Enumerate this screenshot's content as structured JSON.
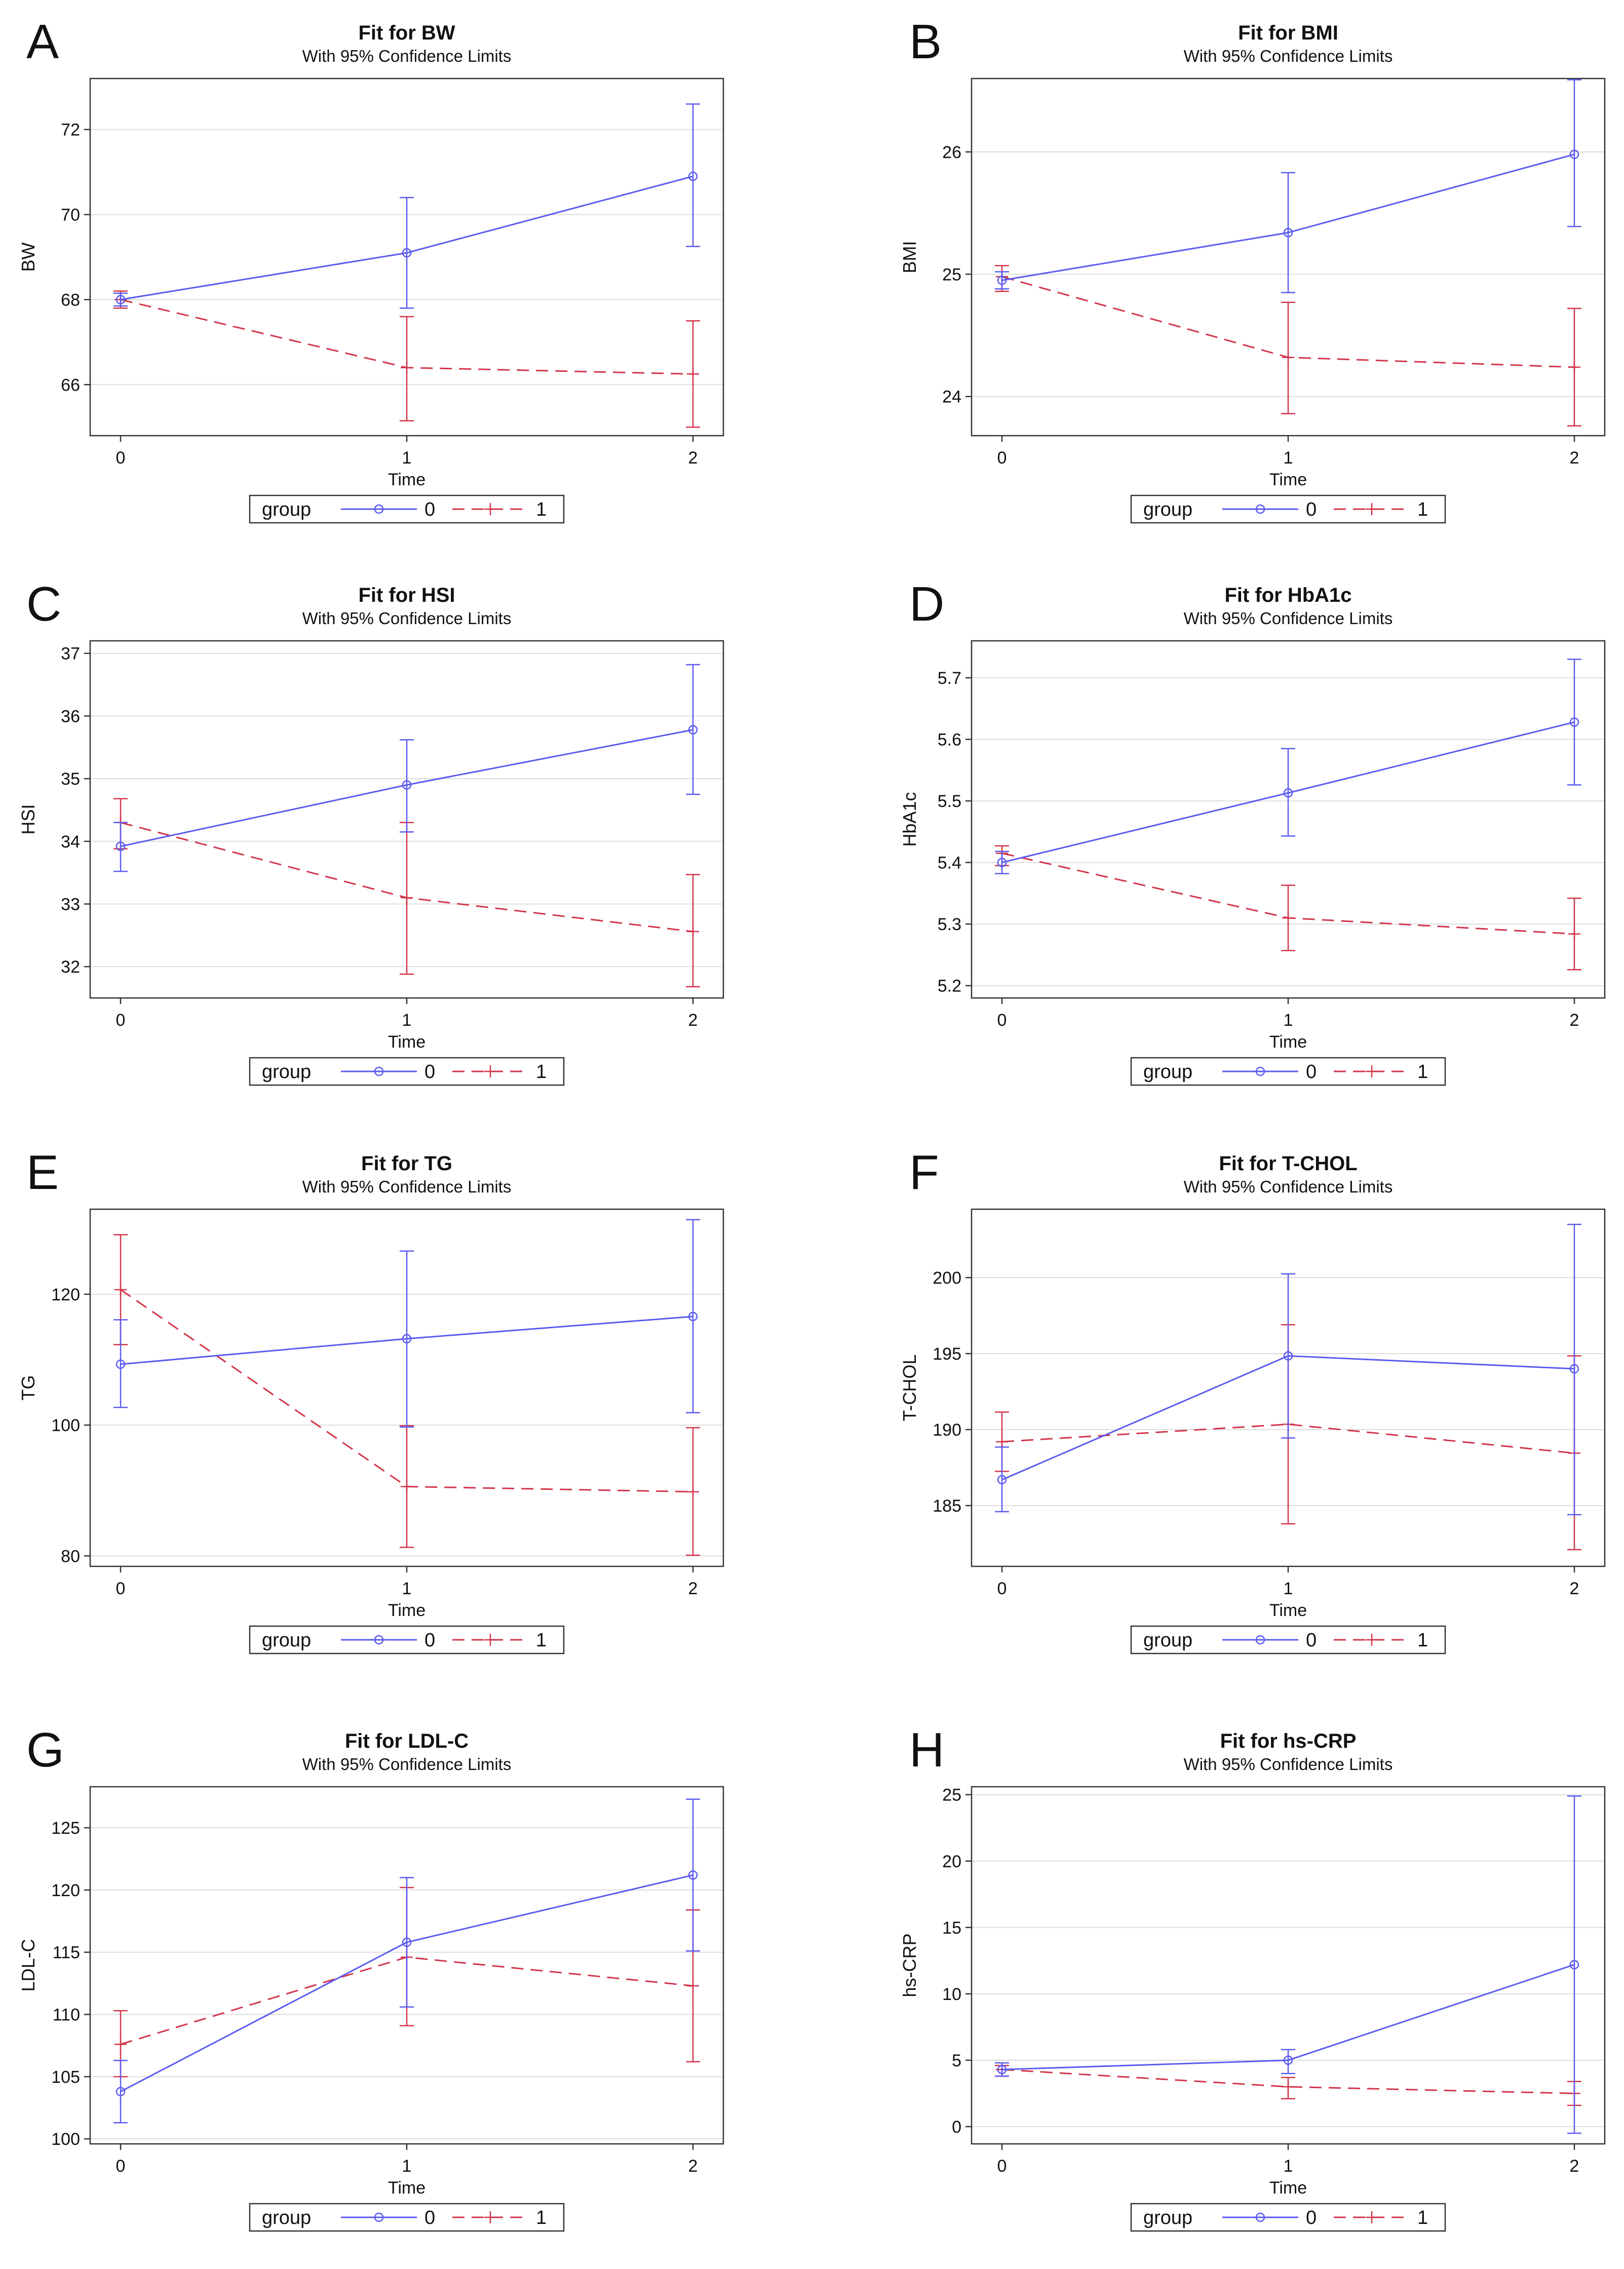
{
  "figure": {
    "subtitle": "With 95% Confidence Limits",
    "x_axis_label": "Time",
    "legend_title": "group",
    "group_labels": [
      "0",
      "1"
    ],
    "colors": {
      "group0": "#5b5bf0",
      "group1": "#d2354a",
      "axis": "#333333",
      "grid": "#dddddd"
    }
  },
  "chart_data": [
    {
      "panel": "A",
      "type": "line",
      "title": "Fit for BW",
      "ylabel": "BW",
      "x": [
        0,
        1,
        2
      ],
      "xticks": [
        "0",
        "1",
        "2"
      ],
      "ylim": [
        64.8,
        73.2
      ],
      "yticks": [
        "66",
        "68",
        "70",
        "72"
      ],
      "series": [
        {
          "name": "0",
          "values": [
            68.0,
            69.1,
            70.9
          ],
          "lower": [
            67.85,
            67.8,
            69.25
          ],
          "upper": [
            68.15,
            70.4,
            72.6
          ]
        },
        {
          "name": "1",
          "values": [
            68.0,
            66.4,
            66.25
          ],
          "lower": [
            67.8,
            65.15,
            65.0
          ],
          "upper": [
            68.2,
            67.6,
            67.5
          ]
        }
      ]
    },
    {
      "panel": "B",
      "type": "line",
      "title": "Fit for BMI",
      "ylabel": "BMI",
      "x": [
        0,
        1,
        2
      ],
      "xticks": [
        "0",
        "1",
        "2"
      ],
      "ylim": [
        23.68,
        26.6
      ],
      "yticks": [
        "24",
        "25",
        "26"
      ],
      "series": [
        {
          "name": "0",
          "values": [
            24.95,
            25.34,
            25.98
          ],
          "lower": [
            24.88,
            24.85,
            25.39
          ],
          "upper": [
            25.02,
            25.83,
            26.59
          ]
        },
        {
          "name": "1",
          "values": [
            24.98,
            24.32,
            24.24
          ],
          "lower": [
            24.86,
            23.86,
            23.76
          ],
          "upper": [
            25.07,
            24.77,
            24.72
          ]
        }
      ]
    },
    {
      "panel": "C",
      "type": "line",
      "title": "Fit for HSI",
      "ylabel": "HSI",
      "x": [
        0,
        1,
        2
      ],
      "xticks": [
        "0",
        "1",
        "2"
      ],
      "ylim": [
        31.5,
        37.2
      ],
      "yticks": [
        "32",
        "33",
        "34",
        "35",
        "36",
        "37"
      ],
      "series": [
        {
          "name": "0",
          "values": [
            33.92,
            34.9,
            35.78
          ],
          "lower": [
            33.52,
            34.15,
            34.75
          ],
          "upper": [
            34.3,
            35.62,
            36.82
          ]
        },
        {
          "name": "1",
          "values": [
            34.3,
            33.1,
            32.56
          ],
          "lower": [
            33.88,
            31.88,
            31.68
          ],
          "upper": [
            34.68,
            34.3,
            33.47
          ]
        }
      ]
    },
    {
      "panel": "D",
      "type": "line",
      "title": "Fit for HbA1c",
      "ylabel": "HbA1c",
      "x": [
        0,
        1,
        2
      ],
      "xticks": [
        "0",
        "1",
        "2"
      ],
      "ylim": [
        5.18,
        5.76
      ],
      "yticks": [
        "5.2",
        "5.3",
        "5.4",
        "5.5",
        "5.6",
        "5.7"
      ],
      "series": [
        {
          "name": "0",
          "values": [
            5.4,
            5.513,
            5.628
          ],
          "lower": [
            5.382,
            5.443,
            5.526
          ],
          "upper": [
            5.418,
            5.585,
            5.73
          ]
        },
        {
          "name": "1",
          "values": [
            5.415,
            5.31,
            5.284
          ],
          "lower": [
            5.395,
            5.257,
            5.226
          ],
          "upper": [
            5.427,
            5.363,
            5.342
          ]
        }
      ]
    },
    {
      "panel": "E",
      "type": "line",
      "title": "Fit for TG",
      "ylabel": "TG",
      "x": [
        0,
        1,
        2
      ],
      "xticks": [
        "0",
        "1",
        "2"
      ],
      "ylim": [
        78.4,
        133.0
      ],
      "yticks": [
        "80",
        "100",
        "120"
      ],
      "series": [
        {
          "name": "0",
          "values": [
            109.3,
            113.2,
            116.6
          ],
          "lower": [
            102.7,
            99.7,
            101.9
          ],
          "upper": [
            116.1,
            126.6,
            131.4
          ]
        },
        {
          "name": "1",
          "values": [
            120.7,
            90.6,
            89.8
          ],
          "lower": [
            112.3,
            81.3,
            80.1
          ],
          "upper": [
            129.1,
            99.9,
            99.6
          ]
        }
      ]
    },
    {
      "panel": "F",
      "type": "line",
      "title": "Fit for T-CHOL",
      "ylabel": "T-CHOL",
      "x": [
        0,
        1,
        2
      ],
      "xticks": [
        "0",
        "1",
        "2"
      ],
      "ylim": [
        181.0,
        204.5
      ],
      "yticks": [
        "185",
        "190",
        "195",
        "200"
      ],
      "series": [
        {
          "name": "0",
          "values": [
            186.7,
            194.85,
            194.0
          ],
          "lower": [
            184.6,
            189.45,
            184.4
          ],
          "upper": [
            188.85,
            200.25,
            203.5
          ]
        },
        {
          "name": "1",
          "values": [
            189.2,
            190.35,
            188.45
          ],
          "lower": [
            187.25,
            183.8,
            182.1
          ],
          "upper": [
            191.15,
            196.9,
            194.85
          ]
        }
      ]
    },
    {
      "panel": "G",
      "type": "line",
      "title": "Fit for LDL-C",
      "ylabel": "LDL-C",
      "x": [
        0,
        1,
        2
      ],
      "xticks": [
        "0",
        "1",
        "2"
      ],
      "ylim": [
        99.6,
        128.3
      ],
      "yticks": [
        "100",
        "105",
        "110",
        "115",
        "120",
        "125"
      ],
      "series": [
        {
          "name": "0",
          "values": [
            103.8,
            115.8,
            121.2
          ],
          "lower": [
            101.3,
            110.6,
            115.1
          ],
          "upper": [
            106.3,
            121.0,
            127.3
          ]
        },
        {
          "name": "1",
          "values": [
            107.6,
            114.6,
            112.3
          ],
          "lower": [
            105.0,
            109.1,
            106.2
          ],
          "upper": [
            110.3,
            120.2,
            118.4
          ]
        }
      ]
    },
    {
      "panel": "H",
      "type": "line",
      "title": "Fit for hs-CRP",
      "ylabel": "hs-CRP",
      "x": [
        0,
        1,
        2
      ],
      "xticks": [
        "0",
        "1",
        "2"
      ],
      "ylim": [
        -1.3,
        25.6
      ],
      "yticks": [
        "0",
        "5",
        "10",
        "15",
        "20",
        "25"
      ],
      "series": [
        {
          "name": "0",
          "values": [
            4.3,
            5.0,
            12.2
          ],
          "lower": [
            3.8,
            4.0,
            -0.5
          ],
          "upper": [
            4.8,
            5.8,
            24.9
          ]
        },
        {
          "name": "1",
          "values": [
            4.3,
            3.0,
            2.5
          ],
          "lower": [
            3.8,
            2.1,
            1.6
          ],
          "upper": [
            4.6,
            3.7,
            3.4
          ]
        }
      ]
    }
  ]
}
